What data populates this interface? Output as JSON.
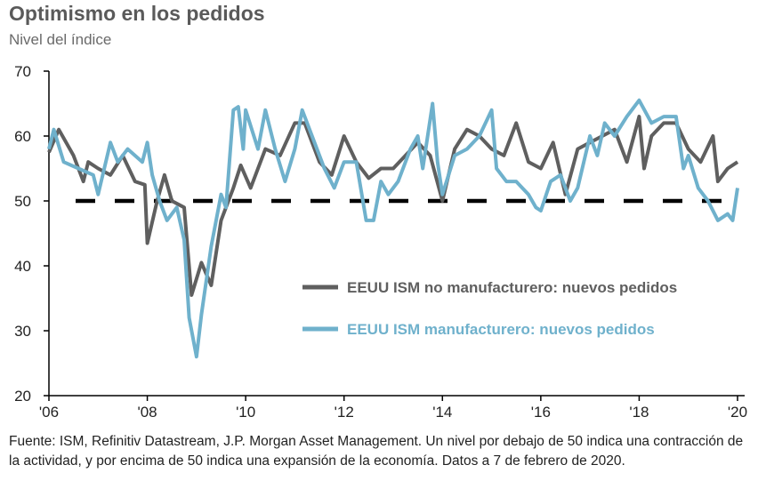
{
  "title": "Optimismo en los pedidos",
  "subtitle": "Nivel del índice",
  "source": "Fuente: ISM, Refinitiv Datastream, J.P. Morgan Asset Management. Un nivel por debajo de 50 indica una contracción de la actividad, y por encima de 50 indica una expansión de la economía. Datos a 7 de febrero de 2020.",
  "chart_data": {
    "type": "line",
    "title": "Optimismo en los pedidos",
    "ylabel": "Nivel del índice",
    "xlabel": "",
    "xlim": [
      2006,
      2020
    ],
    "ylim": [
      20,
      70
    ],
    "yticks": [
      20,
      30,
      40,
      50,
      60,
      70
    ],
    "xticks": [
      2006,
      2008,
      2010,
      2012,
      2014,
      2016,
      2018,
      2020
    ],
    "xtick_labels": [
      "'06",
      "'08",
      "'10",
      "'12",
      "'14",
      "'16",
      "'18",
      "'20"
    ],
    "grid": false,
    "legend_placement": "center-right",
    "reference_line": {
      "y": 50,
      "style": "dashed",
      "color": "#000000"
    },
    "series": [
      {
        "name": "EEUU ISM no manufacturero: nuevos pedidos",
        "color": "#5f5f5f",
        "x": [
          2006.0,
          2006.2,
          2006.5,
          2006.7,
          2006.8,
          2007.0,
          2007.25,
          2007.5,
          2007.75,
          2007.95,
          2008.0,
          2008.2,
          2008.35,
          2008.5,
          2008.75,
          2008.9,
          2009.1,
          2009.3,
          2009.5,
          2009.75,
          2009.9,
          2010.1,
          2010.4,
          2010.7,
          2011.0,
          2011.2,
          2011.5,
          2011.75,
          2012.0,
          2012.25,
          2012.5,
          2012.75,
          2013.0,
          2013.25,
          2013.5,
          2013.75,
          2014.0,
          2014.25,
          2014.5,
          2014.75,
          2015.0,
          2015.25,
          2015.5,
          2015.75,
          2016.0,
          2016.25,
          2016.5,
          2016.75,
          2017.0,
          2017.25,
          2017.5,
          2017.75,
          2018.0,
          2018.1,
          2018.25,
          2018.5,
          2018.75,
          2019.0,
          2019.25,
          2019.5,
          2019.6,
          2019.8,
          2020.0
        ],
        "y": [
          57.5,
          61,
          57,
          53,
          56,
          55,
          54,
          57,
          53,
          52.5,
          43.5,
          50,
          54,
          50,
          49,
          35.5,
          40.5,
          37,
          47,
          52,
          55.5,
          52,
          58,
          57,
          62,
          62,
          56,
          54,
          60,
          56,
          53.5,
          55,
          55,
          57,
          59,
          57,
          50,
          58,
          61,
          60,
          58,
          57,
          62,
          56,
          55,
          59,
          51,
          58,
          59,
          60,
          61,
          56,
          63,
          55,
          60,
          62,
          62,
          58,
          56,
          60,
          53,
          55,
          56
        ]
      },
      {
        "name": "EEUU ISM manufacturero: nuevos pedidos",
        "color": "#6fb1cc",
        "x": [
          2006.0,
          2006.1,
          2006.3,
          2006.6,
          2006.9,
          2007.0,
          2007.25,
          2007.4,
          2007.6,
          2007.9,
          2008.0,
          2008.1,
          2008.25,
          2008.4,
          2008.6,
          2008.75,
          2008.85,
          2009.0,
          2009.1,
          2009.3,
          2009.5,
          2009.6,
          2009.75,
          2009.85,
          2009.95,
          2010.0,
          2010.25,
          2010.4,
          2010.6,
          2010.8,
          2011.0,
          2011.15,
          2011.3,
          2011.6,
          2011.8,
          2012.0,
          2012.25,
          2012.45,
          2012.6,
          2012.75,
          2012.9,
          2013.1,
          2013.35,
          2013.5,
          2013.6,
          2013.8,
          2013.9,
          2014.0,
          2014.25,
          2014.5,
          2014.75,
          2015.0,
          2015.1,
          2015.3,
          2015.5,
          2015.75,
          2015.9,
          2016.0,
          2016.2,
          2016.4,
          2016.6,
          2016.75,
          2017.0,
          2017.15,
          2017.3,
          2017.5,
          2017.75,
          2018.0,
          2018.25,
          2018.5,
          2018.75,
          2018.9,
          2019.0,
          2019.2,
          2019.4,
          2019.6,
          2019.8,
          2019.9,
          2020.0
        ],
        "y": [
          58,
          61,
          56,
          55,
          54,
          51,
          59,
          56,
          58,
          56,
          59,
          54,
          50,
          47,
          49,
          44,
          32,
          26,
          32.5,
          43,
          51,
          49,
          64,
          64.5,
          58,
          64,
          58,
          64,
          58,
          53,
          58,
          64,
          61,
          55,
          52,
          56,
          56,
          47,
          47,
          53,
          51,
          53,
          58,
          60,
          55,
          65,
          56,
          51,
          57,
          58,
          60,
          64,
          55,
          53,
          53,
          51,
          49,
          48.5,
          53,
          54,
          50,
          52,
          60,
          57,
          62,
          60,
          63,
          65.5,
          62,
          63,
          63,
          55,
          57,
          52,
          50,
          47,
          48,
          47,
          52
        ]
      }
    ]
  }
}
